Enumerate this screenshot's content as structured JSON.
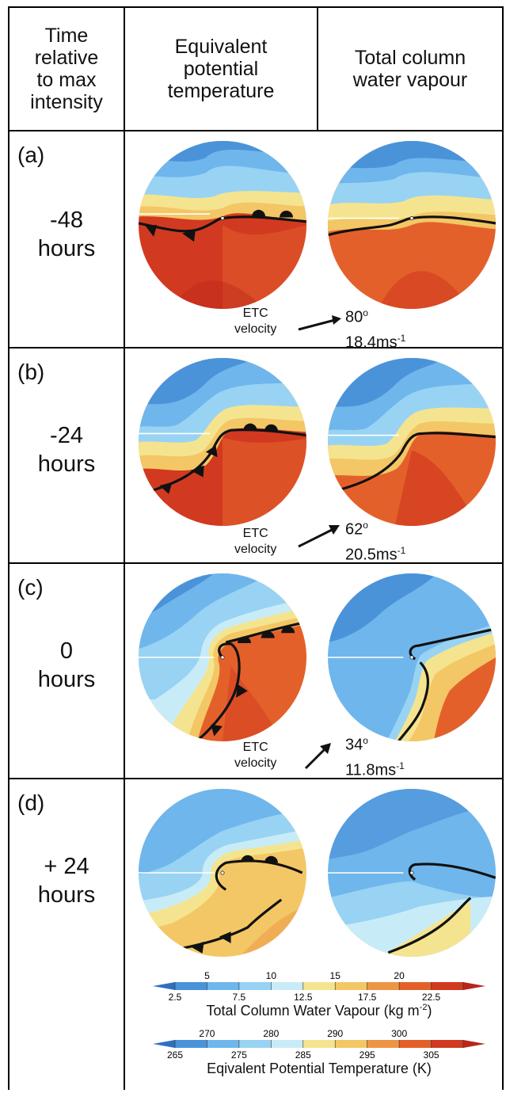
{
  "header": {
    "col1": [
      "Time",
      "relative",
      "to  max",
      "intensity"
    ],
    "col2": [
      "Equivalent",
      "potential",
      "temperature"
    ],
    "col3": [
      "Total column",
      "water vapour"
    ]
  },
  "rows": [
    {
      "label": "(a)",
      "time": [
        "-48",
        "hours"
      ],
      "velocity_label": [
        "ETC",
        "velocity"
      ],
      "direction": "80",
      "speed": "18.4ms",
      "speed_exp": "-1",
      "degree_sign": "o"
    },
    {
      "label": "(b)",
      "time": [
        "-24",
        "hours"
      ],
      "velocity_label": [
        "ETC",
        "velocity"
      ],
      "direction": "62",
      "speed": "20.5ms",
      "speed_exp": "-1",
      "degree_sign": "o"
    },
    {
      "label": "(c)",
      "time": [
        "0",
        "hours"
      ],
      "velocity_label": [
        "ETC",
        "velocity"
      ],
      "direction": "34",
      "speed": "11.8ms",
      "speed_exp": "-1",
      "degree_sign": "o"
    },
    {
      "label": "(d)",
      "time": [
        "+ 24",
        "hours"
      ]
    }
  ],
  "colorbars": {
    "tcwv": {
      "title": "Total Column Water Vapour (kg m",
      "title_exp": "-2",
      "title_end": ")",
      "top_ticks": [
        "5",
        "10",
        "15",
        "20"
      ],
      "bottom_ticks": [
        "2.5",
        "7.5",
        "12.5",
        "17.5",
        "22.5"
      ]
    },
    "theta_e": {
      "title": "Eqivalent Potential Temperature (K)",
      "top_ticks": [
        "270",
        "280",
        "290",
        "300"
      ],
      "bottom_ticks": [
        "265",
        "275",
        "285",
        "295",
        "305"
      ]
    },
    "colors": [
      "#2f6fbf",
      "#4a93d9",
      "#6fb6ec",
      "#98d3f4",
      "#c8ecf7",
      "#f5e48f",
      "#f3c765",
      "#ec9645",
      "#e4602b",
      "#d13a20",
      "#b8261b"
    ]
  }
}
